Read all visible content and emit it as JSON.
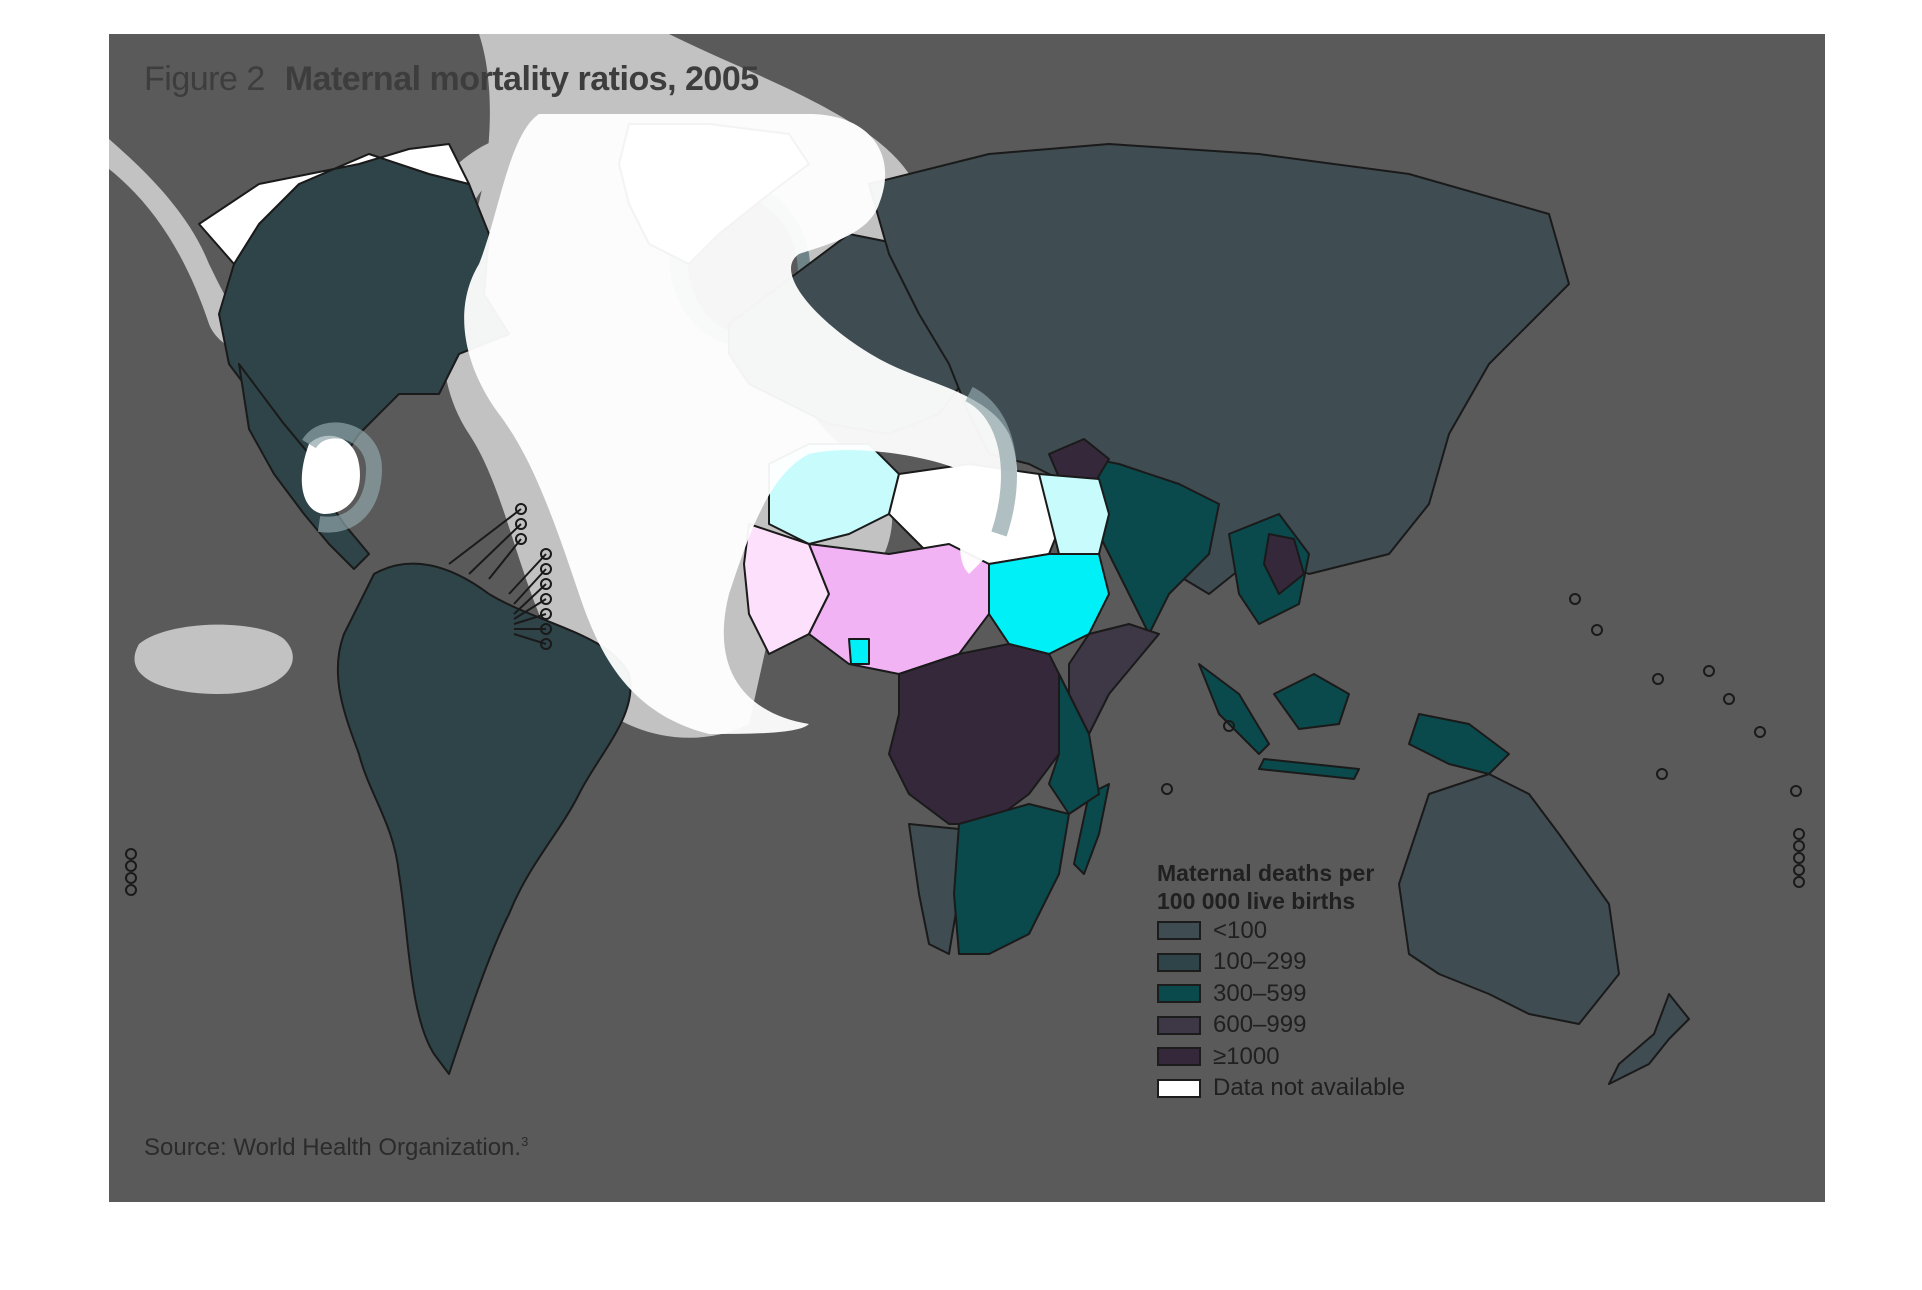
{
  "header": {
    "figure_label": "Figure 2",
    "title": "Maternal mortality ratios, 2005"
  },
  "legend": {
    "title_line1": "Maternal deaths per",
    "title_line2": "100 000 live births",
    "items": [
      {
        "label": "<100",
        "color": "#3f4c52"
      },
      {
        "label": "100–299",
        "color": "#2e4449"
      },
      {
        "label": "300–599",
        "color": "#0a4a4c"
      },
      {
        "label": "600–999",
        "color": "#3e3746"
      },
      {
        "label": "≥1000",
        "color": "#35283a"
      },
      {
        "label": "Data not available",
        "color": "#ffffff"
      }
    ]
  },
  "source": {
    "text": "Source: World Health Organization.",
    "superscript": "3"
  },
  "colors": {
    "background": "#5a5a5a",
    "country_border": "#1a1a1a",
    "overlay_white": "#ffffff",
    "overlay_halo": "#c2c2c2",
    "overlay_teal_edge": "#8fa4a8",
    "west_africa_pink": "#f2b3f5",
    "sahel_light_pink": "#fde0fb",
    "north_africa_cyan": "#c8fbfb",
    "sudan_cyan": "#00f0f7"
  }
}
